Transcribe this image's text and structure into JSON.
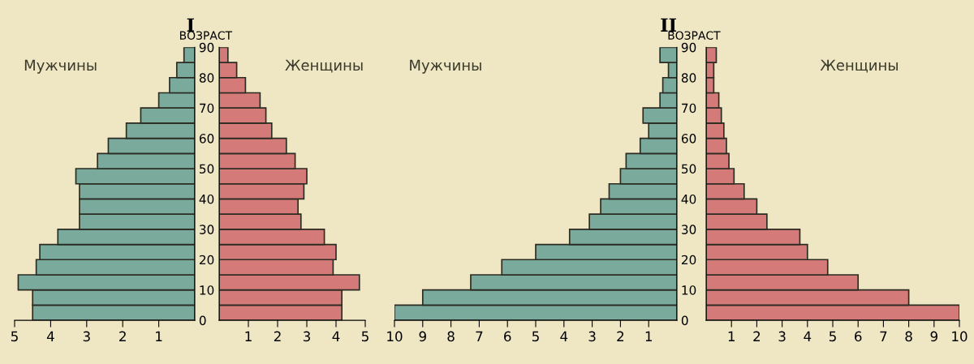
{
  "chart_data": [
    {
      "type": "bar",
      "orientation": "horizontal",
      "title": "I",
      "ylabel": "ВОЗРАСТ",
      "x": [
        2.5,
        7.5,
        12.5,
        17.5,
        22.5,
        27.5,
        32.5,
        37.5,
        42.5,
        47.5,
        52.5,
        57.5,
        62.5,
        67.5,
        72.5,
        77.5,
        82.5,
        87.5
      ],
      "series": [
        {
          "name": "Мужчины",
          "color": "#79aa9c",
          "values": [
            4.5,
            4.5,
            4.9,
            4.4,
            4.3,
            3.8,
            3.2,
            3.2,
            3.2,
            3.3,
            2.7,
            2.4,
            1.9,
            1.5,
            1.0,
            0.7,
            0.5,
            0.3
          ]
        }
      ],
      "xlim": [
        5,
        0
      ],
      "xticks": [
        5,
        4,
        3,
        2,
        1
      ],
      "ylim": [
        0,
        90
      ],
      "yticks": [
        0,
        10,
        20,
        30,
        40,
        50,
        60,
        70,
        80,
        90
      ]
    },
    {
      "type": "bar",
      "orientation": "horizontal",
      "x": [
        2.5,
        7.5,
        12.5,
        17.5,
        22.5,
        27.5,
        32.5,
        37.5,
        42.5,
        47.5,
        52.5,
        57.5,
        62.5,
        67.5,
        72.5,
        77.5,
        82.5,
        87.5
      ],
      "series": [
        {
          "name": "Женщины",
          "color": "#d47a78",
          "values": [
            4.2,
            4.2,
            4.8,
            3.9,
            4.0,
            3.6,
            2.8,
            2.7,
            2.9,
            3.0,
            2.6,
            2.3,
            1.8,
            1.6,
            1.4,
            0.9,
            0.6,
            0.3
          ]
        }
      ],
      "xlim": [
        0,
        5
      ],
      "xticks": [
        1,
        2,
        3,
        4,
        5
      ],
      "ylim": [
        0,
        90
      ],
      "yticks": [
        0,
        10,
        20,
        30,
        40,
        50,
        60,
        70,
        80,
        90
      ],
      "tick_labels": "x"
    },
    {
      "type": "bar",
      "orientation": "horizontal",
      "title": "II",
      "ylabel": "ВОЗРАСТ",
      "x": [
        2.5,
        7.5,
        12.5,
        17.5,
        22.5,
        27.5,
        32.5,
        37.5,
        42.5,
        47.5,
        52.5,
        57.5,
        62.5,
        67.5,
        72.5,
        77.5,
        82.5,
        87.5
      ],
      "series": [
        {
          "name": "Мужчины",
          "color": "#79aa9c",
          "values": [
            10.0,
            9.0,
            7.3,
            6.2,
            5.0,
            3.8,
            3.1,
            2.7,
            2.4,
            2.0,
            1.8,
            1.3,
            1.0,
            1.2,
            0.6,
            0.5,
            0.3,
            0.6
          ]
        }
      ],
      "xlim": [
        10,
        0
      ],
      "xticks": [
        10,
        9,
        8,
        7,
        6,
        5,
        4,
        3,
        2,
        1
      ],
      "ylim": [
        0,
        90
      ],
      "yticks": [
        0,
        10,
        20,
        30,
        40,
        50,
        60,
        70,
        80,
        90
      ]
    },
    {
      "type": "bar",
      "orientation": "horizontal",
      "x": [
        2.5,
        7.5,
        12.5,
        17.5,
        22.5,
        27.5,
        32.5,
        37.5,
        42.5,
        47.5,
        52.5,
        57.5,
        62.5,
        67.5,
        72.5,
        77.5,
        82.5,
        87.5
      ],
      "series": [
        {
          "name": "Женщины",
          "color": "#d47a78",
          "values": [
            10.0,
            8.0,
            6.0,
            4.8,
            4.0,
            3.7,
            2.4,
            2.0,
            1.5,
            1.1,
            0.9,
            0.8,
            0.7,
            0.6,
            0.5,
            0.3,
            0.3,
            0.4
          ]
        }
      ],
      "xlim": [
        0,
        10
      ],
      "xticks": [
        1,
        2,
        3,
        4,
        5,
        6,
        7,
        8,
        9,
        10
      ],
      "ylim": [
        0,
        90
      ],
      "yticks": [
        0,
        10,
        20,
        30,
        40,
        50,
        60,
        70,
        80,
        90
      ],
      "tick_labels": "x"
    }
  ]
}
